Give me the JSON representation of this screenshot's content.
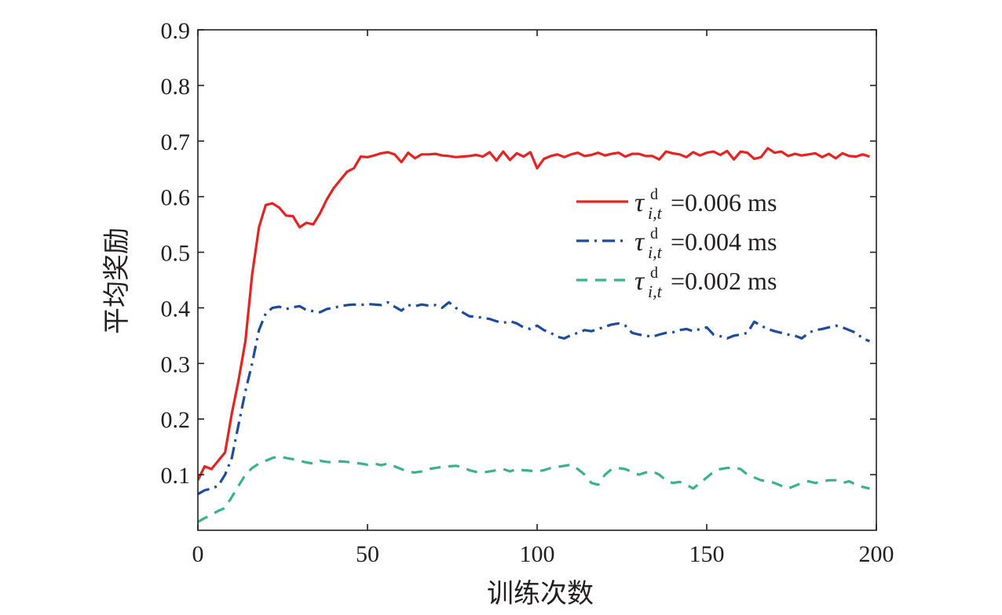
{
  "chart_data": {
    "type": "line",
    "title": "",
    "xlabel": "训练次数",
    "ylabel": "平均奖励",
    "xlim": [
      0,
      200
    ],
    "ylim": [
      0,
      0.9
    ],
    "xticks": [
      0,
      50,
      100,
      150,
      200
    ],
    "xtick_labels": [
      "0",
      "50",
      "100",
      "150",
      "200"
    ],
    "yticks": [
      0.1,
      0.2,
      0.3,
      0.4,
      0.5,
      0.6,
      0.7,
      0.8,
      0.9
    ],
    "ytick_labels": [
      "0.1",
      "0.2",
      "0.3",
      "0.4",
      "0.5",
      "0.6",
      "0.7",
      "0.8",
      "0.9"
    ],
    "grid": false,
    "legend_position": "center-right",
    "series": [
      {
        "name": "τ_{i,t}^d=0.006 ms",
        "legend": {
          "symbol": "τ",
          "subscript": "i,t",
          "superscript": "d",
          "text": "=0.006 ms"
        },
        "color": "#e52421",
        "dash": "solid",
        "x": [
          0,
          2,
          4,
          6,
          8,
          10,
          12,
          14,
          16,
          18,
          20,
          22,
          24,
          26,
          28,
          30,
          32,
          34,
          36,
          38,
          40,
          42,
          44,
          46,
          48,
          50,
          52,
          54,
          56,
          58,
          60,
          62,
          64,
          66,
          68,
          70,
          72,
          74,
          76,
          78,
          80,
          82,
          84,
          86,
          88,
          90,
          92,
          94,
          96,
          98,
          100,
          102,
          104,
          106,
          108,
          110,
          112,
          114,
          116,
          118,
          120,
          122,
          124,
          126,
          128,
          130,
          132,
          134,
          136,
          138,
          140,
          142,
          144,
          146,
          148,
          150,
          152,
          154,
          156,
          158,
          160,
          162,
          164,
          166,
          168,
          170,
          172,
          174,
          176,
          178,
          180,
          182,
          184,
          186,
          188,
          190,
          192,
          194,
          196,
          198
        ],
        "y": [
          0.09,
          0.115,
          0.11,
          0.125,
          0.14,
          0.21,
          0.27,
          0.34,
          0.46,
          0.545,
          0.585,
          0.588,
          0.58,
          0.566,
          0.565,
          0.545,
          0.553,
          0.55,
          0.57,
          0.595,
          0.615,
          0.63,
          0.645,
          0.651,
          0.672,
          0.671,
          0.674,
          0.678,
          0.68,
          0.676,
          0.662,
          0.679,
          0.669,
          0.676,
          0.676,
          0.677,
          0.674,
          0.673,
          0.671,
          0.672,
          0.673,
          0.675,
          0.672,
          0.68,
          0.665,
          0.681,
          0.666,
          0.678,
          0.672,
          0.68,
          0.651,
          0.668,
          0.673,
          0.676,
          0.671,
          0.676,
          0.679,
          0.673,
          0.675,
          0.679,
          0.674,
          0.677,
          0.679,
          0.672,
          0.677,
          0.677,
          0.673,
          0.673,
          0.667,
          0.681,
          0.678,
          0.676,
          0.671,
          0.68,
          0.674,
          0.679,
          0.681,
          0.675,
          0.682,
          0.667,
          0.681,
          0.679,
          0.668,
          0.671,
          0.687,
          0.679,
          0.681,
          0.673,
          0.677,
          0.674,
          0.676,
          0.678,
          0.671,
          0.677,
          0.669,
          0.678,
          0.673,
          0.672,
          0.676,
          0.672
        ]
      },
      {
        "name": "τ_{i,t}^d=0.004 ms",
        "legend": {
          "symbol": "τ",
          "subscript": "i,t",
          "superscript": "d",
          "text": "=0.004 ms"
        },
        "color": "#1d4c9c",
        "dash": "dashdot",
        "x": [
          0,
          2,
          4,
          6,
          8,
          10,
          12,
          14,
          16,
          18,
          20,
          22,
          24,
          26,
          28,
          30,
          32,
          34,
          36,
          38,
          40,
          42,
          44,
          46,
          48,
          50,
          52,
          54,
          56,
          58,
          60,
          62,
          64,
          66,
          68,
          70,
          72,
          74,
          76,
          78,
          80,
          82,
          84,
          86,
          88,
          90,
          92,
          94,
          96,
          98,
          100,
          102,
          104,
          106,
          108,
          110,
          112,
          114,
          116,
          118,
          120,
          122,
          124,
          126,
          128,
          130,
          132,
          134,
          136,
          138,
          140,
          142,
          144,
          146,
          148,
          150,
          152,
          154,
          156,
          158,
          160,
          162,
          164,
          166,
          168,
          170,
          172,
          174,
          176,
          178,
          180,
          182,
          184,
          186,
          188,
          190,
          192,
          194,
          196,
          198
        ],
        "y": [
          0.065,
          0.072,
          0.075,
          0.08,
          0.1,
          0.13,
          0.19,
          0.25,
          0.3,
          0.36,
          0.39,
          0.4,
          0.402,
          0.398,
          0.401,
          0.403,
          0.396,
          0.394,
          0.392,
          0.398,
          0.4,
          0.403,
          0.405,
          0.406,
          0.405,
          0.407,
          0.406,
          0.405,
          0.41,
          0.402,
          0.395,
          0.405,
          0.403,
          0.406,
          0.404,
          0.405,
          0.4,
          0.41,
          0.4,
          0.392,
          0.385,
          0.384,
          0.382,
          0.38,
          0.376,
          0.373,
          0.376,
          0.372,
          0.365,
          0.362,
          0.368,
          0.36,
          0.355,
          0.348,
          0.345,
          0.351,
          0.355,
          0.36,
          0.358,
          0.362,
          0.366,
          0.37,
          0.372,
          0.368,
          0.355,
          0.352,
          0.35,
          0.348,
          0.352,
          0.355,
          0.356,
          0.36,
          0.362,
          0.358,
          0.362,
          0.365,
          0.352,
          0.349,
          0.345,
          0.35,
          0.352,
          0.355,
          0.375,
          0.368,
          0.362,
          0.358,
          0.355,
          0.352,
          0.35,
          0.345,
          0.355,
          0.36,
          0.362,
          0.365,
          0.368,
          0.365,
          0.36,
          0.355,
          0.345,
          0.34
        ]
      },
      {
        "name": "τ_{i,t}^d=0.002 ms",
        "legend": {
          "symbol": "τ",
          "subscript": "i,t",
          "superscript": "d",
          "text": "=0.002 ms"
        },
        "color": "#3ab38a",
        "dash": "dashed",
        "x": [
          0,
          2,
          4,
          6,
          8,
          10,
          12,
          14,
          16,
          18,
          20,
          22,
          24,
          26,
          28,
          30,
          32,
          34,
          36,
          38,
          40,
          42,
          44,
          46,
          48,
          50,
          52,
          54,
          56,
          58,
          60,
          62,
          64,
          66,
          68,
          70,
          72,
          74,
          76,
          78,
          80,
          82,
          84,
          86,
          88,
          90,
          92,
          94,
          96,
          98,
          100,
          102,
          104,
          106,
          108,
          110,
          112,
          114,
          116,
          118,
          120,
          122,
          124,
          126,
          128,
          130,
          132,
          134,
          136,
          138,
          140,
          142,
          144,
          146,
          148,
          150,
          152,
          154,
          156,
          158,
          160,
          162,
          164,
          166,
          168,
          170,
          172,
          174,
          176,
          178,
          180,
          182,
          184,
          186,
          188,
          190,
          192,
          194,
          196,
          198
        ],
        "y": [
          0.015,
          0.022,
          0.028,
          0.035,
          0.04,
          0.06,
          0.08,
          0.1,
          0.112,
          0.12,
          0.125,
          0.13,
          0.133,
          0.13,
          0.128,
          0.125,
          0.122,
          0.12,
          0.125,
          0.123,
          0.122,
          0.124,
          0.123,
          0.121,
          0.12,
          0.118,
          0.12,
          0.117,
          0.12,
          0.115,
          0.11,
          0.105,
          0.104,
          0.106,
          0.11,
          0.112,
          0.114,
          0.115,
          0.116,
          0.114,
          0.108,
          0.105,
          0.104,
          0.106,
          0.108,
          0.11,
          0.106,
          0.11,
          0.108,
          0.107,
          0.106,
          0.108,
          0.112,
          0.114,
          0.116,
          0.118,
          0.11,
          0.1,
          0.085,
          0.082,
          0.1,
          0.11,
          0.112,
          0.11,
          0.105,
          0.1,
          0.104,
          0.106,
          0.1,
          0.09,
          0.085,
          0.087,
          0.082,
          0.075,
          0.085,
          0.095,
          0.105,
          0.11,
          0.112,
          0.113,
          0.11,
          0.1,
          0.095,
          0.09,
          0.088,
          0.085,
          0.08,
          0.075,
          0.08,
          0.085,
          0.088,
          0.085,
          0.088,
          0.09,
          0.09,
          0.085,
          0.088,
          0.082,
          0.078,
          0.075
        ]
      }
    ]
  }
}
